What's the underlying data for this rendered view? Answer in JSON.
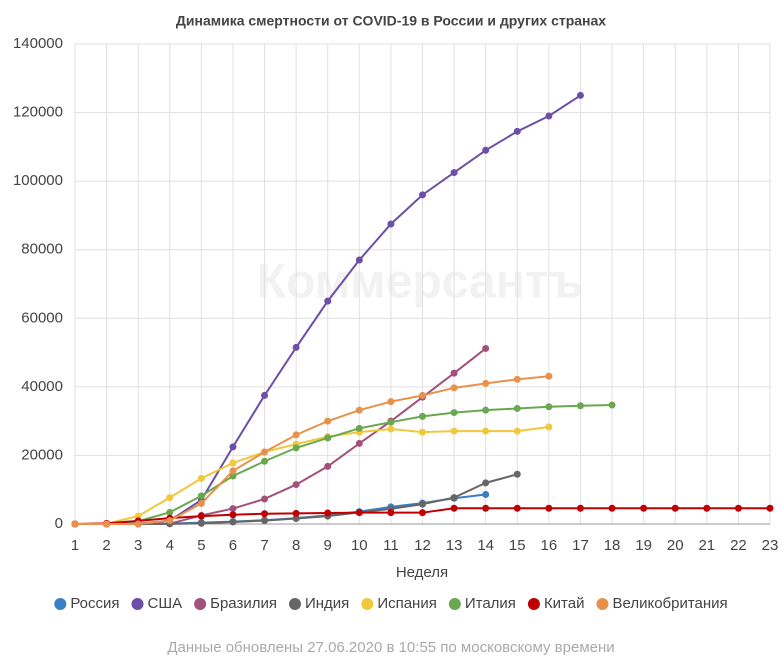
{
  "chart_data": {
    "type": "line",
    "title": "Динамика смертности от COVID-19 в России и других странах",
    "watermark": "Коммерсантъ",
    "x_label": "Неделя",
    "footer": "Данные обновлены 27.06.2020 в 10:55 по московскому времени",
    "x": [
      1,
      2,
      3,
      4,
      5,
      6,
      7,
      8,
      9,
      10,
      11,
      12,
      13,
      14,
      15,
      16,
      17,
      18,
      19,
      20,
      21,
      22,
      23
    ],
    "xlim": [
      1,
      23
    ],
    "xticks": [
      1,
      2,
      3,
      4,
      5,
      6,
      7,
      8,
      9,
      10,
      11,
      12,
      13,
      14,
      15,
      16,
      17,
      18,
      19,
      20,
      21,
      22,
      23
    ],
    "ylim": [
      0,
      140000
    ],
    "yticks": [
      0,
      20000,
      40000,
      60000,
      80000,
      100000,
      120000,
      140000
    ],
    "grid": true,
    "legend": "bottom",
    "series": [
      {
        "name": "Россия",
        "color": "#3a7fc4",
        "values": [
          0,
          0,
          30,
          100,
          400,
          700,
          1100,
          1700,
          2500,
          3600,
          5000,
          6100,
          7500,
          8600,
          null,
          null,
          null,
          null,
          null,
          null,
          null,
          null,
          null
        ]
      },
      {
        "name": "США",
        "color": "#6b4fa8",
        "values": [
          0,
          0,
          100,
          1000,
          7000,
          22500,
          37500,
          51500,
          65000,
          77000,
          87500,
          96000,
          102500,
          109000,
          114500,
          119000,
          125000,
          null,
          null,
          null,
          null,
          null,
          null
        ]
      },
      {
        "name": "Бразилия",
        "color": "#a3507a",
        "values": [
          0,
          0,
          0,
          100,
          2500,
          4500,
          7300,
          11500,
          16800,
          23500,
          30000,
          37000,
          44000,
          51200,
          null,
          null,
          null,
          null,
          null,
          null,
          null,
          null,
          null
        ]
      },
      {
        "name": "Индия",
        "color": "#666666",
        "values": [
          0,
          0,
          0,
          50,
          200,
          600,
          1000,
          1600,
          2300,
          3400,
          4400,
          5800,
          7700,
          12000,
          14500,
          null,
          null,
          null,
          null,
          null,
          null,
          null,
          null
        ]
      },
      {
        "name": "Испания",
        "color": "#f0c83c",
        "values": [
          0,
          100,
          2300,
          7700,
          13300,
          17800,
          21000,
          23300,
          25500,
          26800,
          27700,
          26800,
          27100,
          27100,
          27100,
          28300,
          null,
          null,
          null,
          null,
          null,
          null,
          null
        ]
      },
      {
        "name": "Италия",
        "color": "#6aa84f",
        "values": [
          0,
          0,
          800,
          3400,
          8200,
          14000,
          18300,
          22200,
          25100,
          27900,
          29700,
          31400,
          32500,
          33200,
          33700,
          34200,
          34500,
          34700,
          null,
          null,
          null,
          null,
          null
        ]
      },
      {
        "name": "Китай",
        "color": "#c00000",
        "values": [
          0,
          200,
          900,
          1700,
          2300,
          2700,
          3000,
          3100,
          3200,
          3300,
          3300,
          3300,
          4600,
          4600,
          4600,
          4600,
          4600,
          4600,
          4600,
          4600,
          4600,
          4600,
          4600
        ]
      },
      {
        "name": "Великобритания",
        "color": "#e8914a",
        "values": [
          0,
          0,
          0,
          1000,
          6000,
          15500,
          21000,
          26000,
          30000,
          33200,
          35700,
          37500,
          39700,
          41000,
          42200,
          43100,
          null,
          null,
          null,
          null,
          null,
          null,
          null
        ]
      }
    ]
  }
}
